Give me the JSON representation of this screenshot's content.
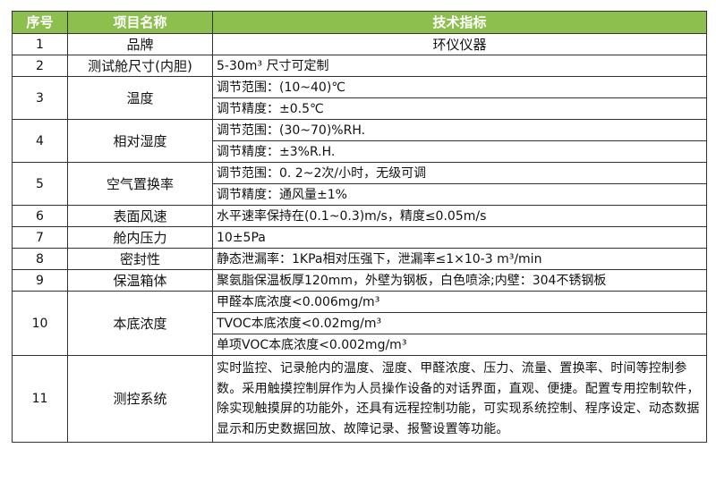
{
  "colors": {
    "header_bg": "#8dbf4f",
    "header_text": "#ffffff",
    "border": "#333333"
  },
  "headers": [
    "序号",
    "项目名称",
    "技术指标"
  ],
  "rows": [
    {
      "no": "1",
      "name": "品牌",
      "specs": [
        "环仪仪器"
      ]
    },
    {
      "no": "2",
      "name": "测试舱尺寸(内胆)",
      "specs": [
        "5-30m³ 尺寸可定制"
      ]
    },
    {
      "no": "3",
      "name": "温度",
      "specs": [
        "调节范围：(10~40)℃",
        "调节精度：±0.5℃"
      ]
    },
    {
      "no": "4",
      "name": "相对湿度",
      "specs": [
        "调节范围：(30~70)%RH.",
        "调节精度：±3%R.H."
      ]
    },
    {
      "no": "5",
      "name": "空气置换率",
      "specs": [
        "调节范围：0. 2~2次/小时，无级可调",
        "调节精度：通风量±1%"
      ]
    },
    {
      "no": "6",
      "name": "表面风速",
      "specs": [
        "水平速率保持在(0.1~0.3)m/s，精度≤0.05m/s"
      ]
    },
    {
      "no": "7",
      "name": "舱内压力",
      "specs": [
        "10±5Pa"
      ]
    },
    {
      "no": "8",
      "name": "密封性",
      "specs": [
        "静态泄漏率：1KPa相对压强下，泄漏率≤1×10-3 m³/min"
      ]
    },
    {
      "no": "9",
      "name": "保温箱体",
      "specs": [
        "聚氨脂保温板厚120mm，外壁为钢板，白色喷涂;内壁：304不锈钢板"
      ]
    },
    {
      "no": "10",
      "name": "本底浓度",
      "specs": [
        "甲醛本底浓度<0.006mg/m³",
        "TVOC本底浓度<0.02mg/m³",
        "单项VOC本底浓度<0.002mg/m³"
      ]
    },
    {
      "no": "11",
      "name": "测控系统",
      "specs": [
        "实时监控、记录舱内的温度、湿度、甲醛浓度、压力、流量、置换率、时间等控制参数。采用触摸控制屏作为人员操作设备的对话界面，直观、便捷。配置专用控制软件，除实现触摸屏的功能外，还具有远程控制功能，可实现系统控制、程序设定、动态数据显示和历史数据回放、故障记录、报警设置等功能。"
      ]
    }
  ]
}
